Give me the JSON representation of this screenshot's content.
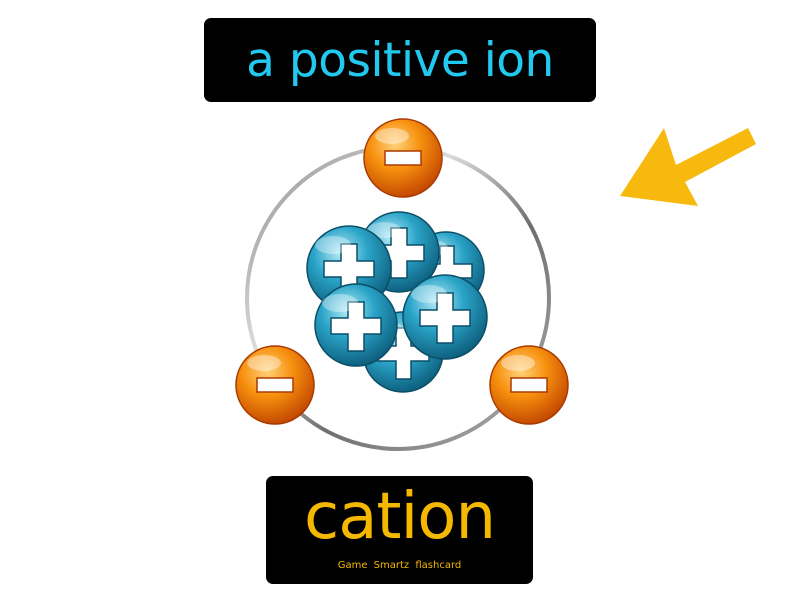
{
  "flashcard": {
    "definition": "a positive ion",
    "term": "cation",
    "brand": "Game Smartz flashcard"
  },
  "illustration": {
    "subject": "atom",
    "electron_symbol": "-",
    "proton_symbol": "+",
    "electron_count": 3,
    "proton_count": 6
  },
  "colors": {
    "box_background": "#000000",
    "definition_text": "#22c9ee",
    "term_text": "#f5b800",
    "arrow": "#f7b90d",
    "electron": "#f07a06",
    "proton": "#1c8fb0"
  },
  "icons": {
    "pointer": "arrow-icon",
    "electron": "electron-icon",
    "proton": "proton-icon"
  }
}
